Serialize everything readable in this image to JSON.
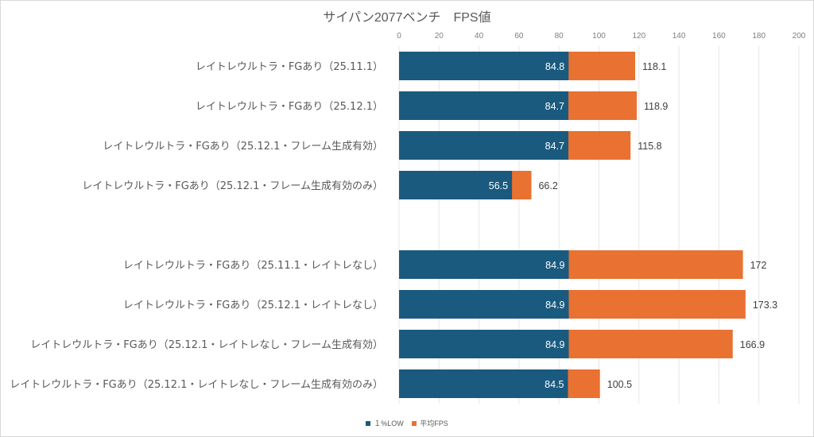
{
  "chart_data": {
    "type": "bar",
    "orientation": "horizontal",
    "title": "サイパン2077ベンチ　FPS値",
    "xlabel": "",
    "ylabel": "",
    "xlim": [
      0,
      200
    ],
    "x_ticks": [
      0,
      20,
      40,
      60,
      80,
      100,
      120,
      140,
      160,
      180,
      200
    ],
    "grid": true,
    "legend_position": "bottom",
    "categories": [
      "レイトレウルトラ・FGあり（25.11.1）",
      "レイトレウルトラ・FGあり（25.12.1）",
      "レイトレウルトラ・FGあり（25.12.1・フレーム生成有効）",
      "レイトレウルトラ・FGあり（25.12.1・フレーム生成有効のみ）",
      "",
      "レイトレウルトラ・FGあり（25.11.1・レイトレなし）",
      "レイトレウルトラ・FGあり（25.12.1・レイトレなし）",
      "レイトレウルトラ・FGあり（25.12.1・レイトレなし・フレーム生成有効）",
      "レイトレウルトラ・FGあり（25.12.1・レイトレなし・フレーム生成有効のみ）"
    ],
    "series": [
      {
        "name": "１%LOW",
        "color": "#1a5a7e",
        "values": [
          84.8,
          84.7,
          84.7,
          56.5,
          null,
          84.9,
          84.9,
          84.9,
          84.5
        ],
        "labels": [
          "84.8",
          "84.7",
          "84.7",
          "56.5",
          "",
          "84.9",
          "84.9",
          "84.9",
          "84.5"
        ]
      },
      {
        "name": "平均FPS",
        "color": "#e97132",
        "values": [
          118.1,
          118.9,
          115.8,
          66.2,
          null,
          172,
          173.3,
          166.9,
          100.5
        ],
        "labels": [
          "118.1",
          "118.9",
          "115.8",
          "66.2",
          "",
          "172",
          "173.3",
          "166.9",
          "100.5"
        ]
      }
    ]
  }
}
